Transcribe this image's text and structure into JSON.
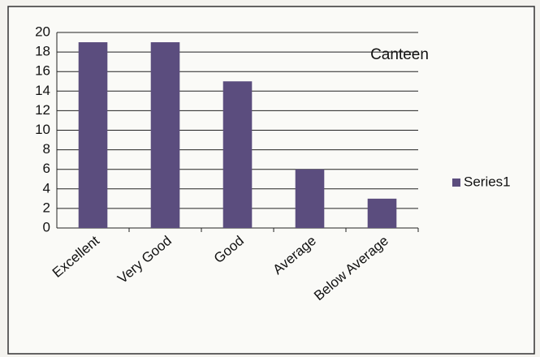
{
  "chart_data": {
    "type": "bar",
    "title": "Canteen",
    "categories": [
      "Excellent",
      "Very Good",
      "Good",
      "Average",
      "Below Average"
    ],
    "series": [
      {
        "name": "Series1",
        "color": "#5b4d7e",
        "values": [
          19,
          19,
          15,
          6,
          3
        ]
      }
    ],
    "ylim": [
      0,
      20
    ],
    "yticks": [
      0,
      2,
      4,
      6,
      8,
      10,
      12,
      14,
      16,
      18,
      20
    ],
    "grid": true,
    "legend": "right"
  }
}
